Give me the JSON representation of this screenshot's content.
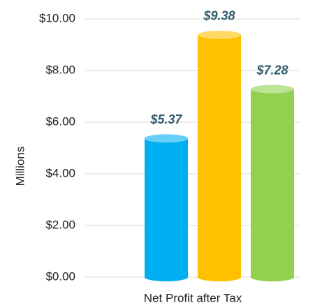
{
  "chart_data": {
    "type": "bar",
    "y_label": "Millions",
    "categories": [
      "Net Profit after Tax"
    ],
    "series": [
      {
        "color": "#00b0f0",
        "values": [
          5.37
        ],
        "value_labels": [
          "$5.37"
        ]
      },
      {
        "color": "#ffc000",
        "values": [
          9.38
        ],
        "value_labels": [
          "$9.38"
        ]
      },
      {
        "color": "#92d050",
        "values": [
          7.28
        ],
        "value_labels": [
          "$7.28"
        ]
      }
    ],
    "ylim": [
      0,
      10
    ],
    "yticks": [
      {
        "value": 0,
        "label": "$0.00"
      },
      {
        "value": 2,
        "label": "$2.00"
      },
      {
        "value": 4,
        "label": "$4.00"
      },
      {
        "value": 6,
        "label": "$6.00"
      },
      {
        "value": 8,
        "label": "$8.00"
      },
      {
        "value": 10,
        "label": "$10.00"
      }
    ],
    "grid": true
  }
}
